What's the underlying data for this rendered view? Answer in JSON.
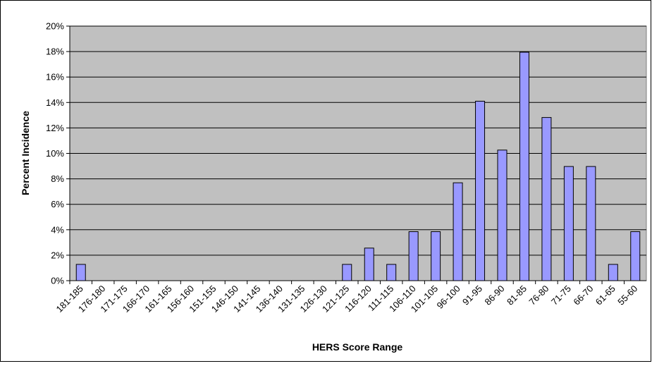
{
  "chart_data": {
    "type": "bar",
    "xlabel": "HERS Score Range",
    "ylabel": "Percent Incidence",
    "categories": [
      "181-185",
      "176-180",
      "171-175",
      "166-170",
      "161-165",
      "156-160",
      "151-155",
      "146-150",
      "141-145",
      "136-140",
      "131-135",
      "126-130",
      "121-125",
      "116-120",
      "111-115",
      "106-110",
      "101-105",
      "96-100",
      "91-95",
      "86-90",
      "81-85",
      "76-80",
      "71-75",
      "66-70",
      "61-65",
      "55-60"
    ],
    "values": [
      1.28,
      0,
      0,
      0,
      0,
      0,
      0,
      0,
      0,
      0,
      0,
      0,
      1.28,
      2.56,
      1.28,
      3.85,
      3.85,
      7.69,
      14.1,
      10.26,
      17.95,
      12.82,
      8.97,
      8.97,
      1.28,
      3.85
    ],
    "color": "#9999ff",
    "ylim": [
      0,
      20
    ],
    "yticks": [
      {
        "value": 0,
        "label": "0%"
      },
      {
        "value": 2,
        "label": "2%"
      },
      {
        "value": 4,
        "label": "4%"
      },
      {
        "value": 6,
        "label": "6%"
      },
      {
        "value": 8,
        "label": "8%"
      },
      {
        "value": 10,
        "label": "10%"
      },
      {
        "value": 12,
        "label": "12%"
      },
      {
        "value": 14,
        "label": "14%"
      },
      {
        "value": 16,
        "label": "16%"
      },
      {
        "value": 18,
        "label": "18%"
      },
      {
        "value": 20,
        "label": "20%"
      }
    ],
    "grid": true
  }
}
